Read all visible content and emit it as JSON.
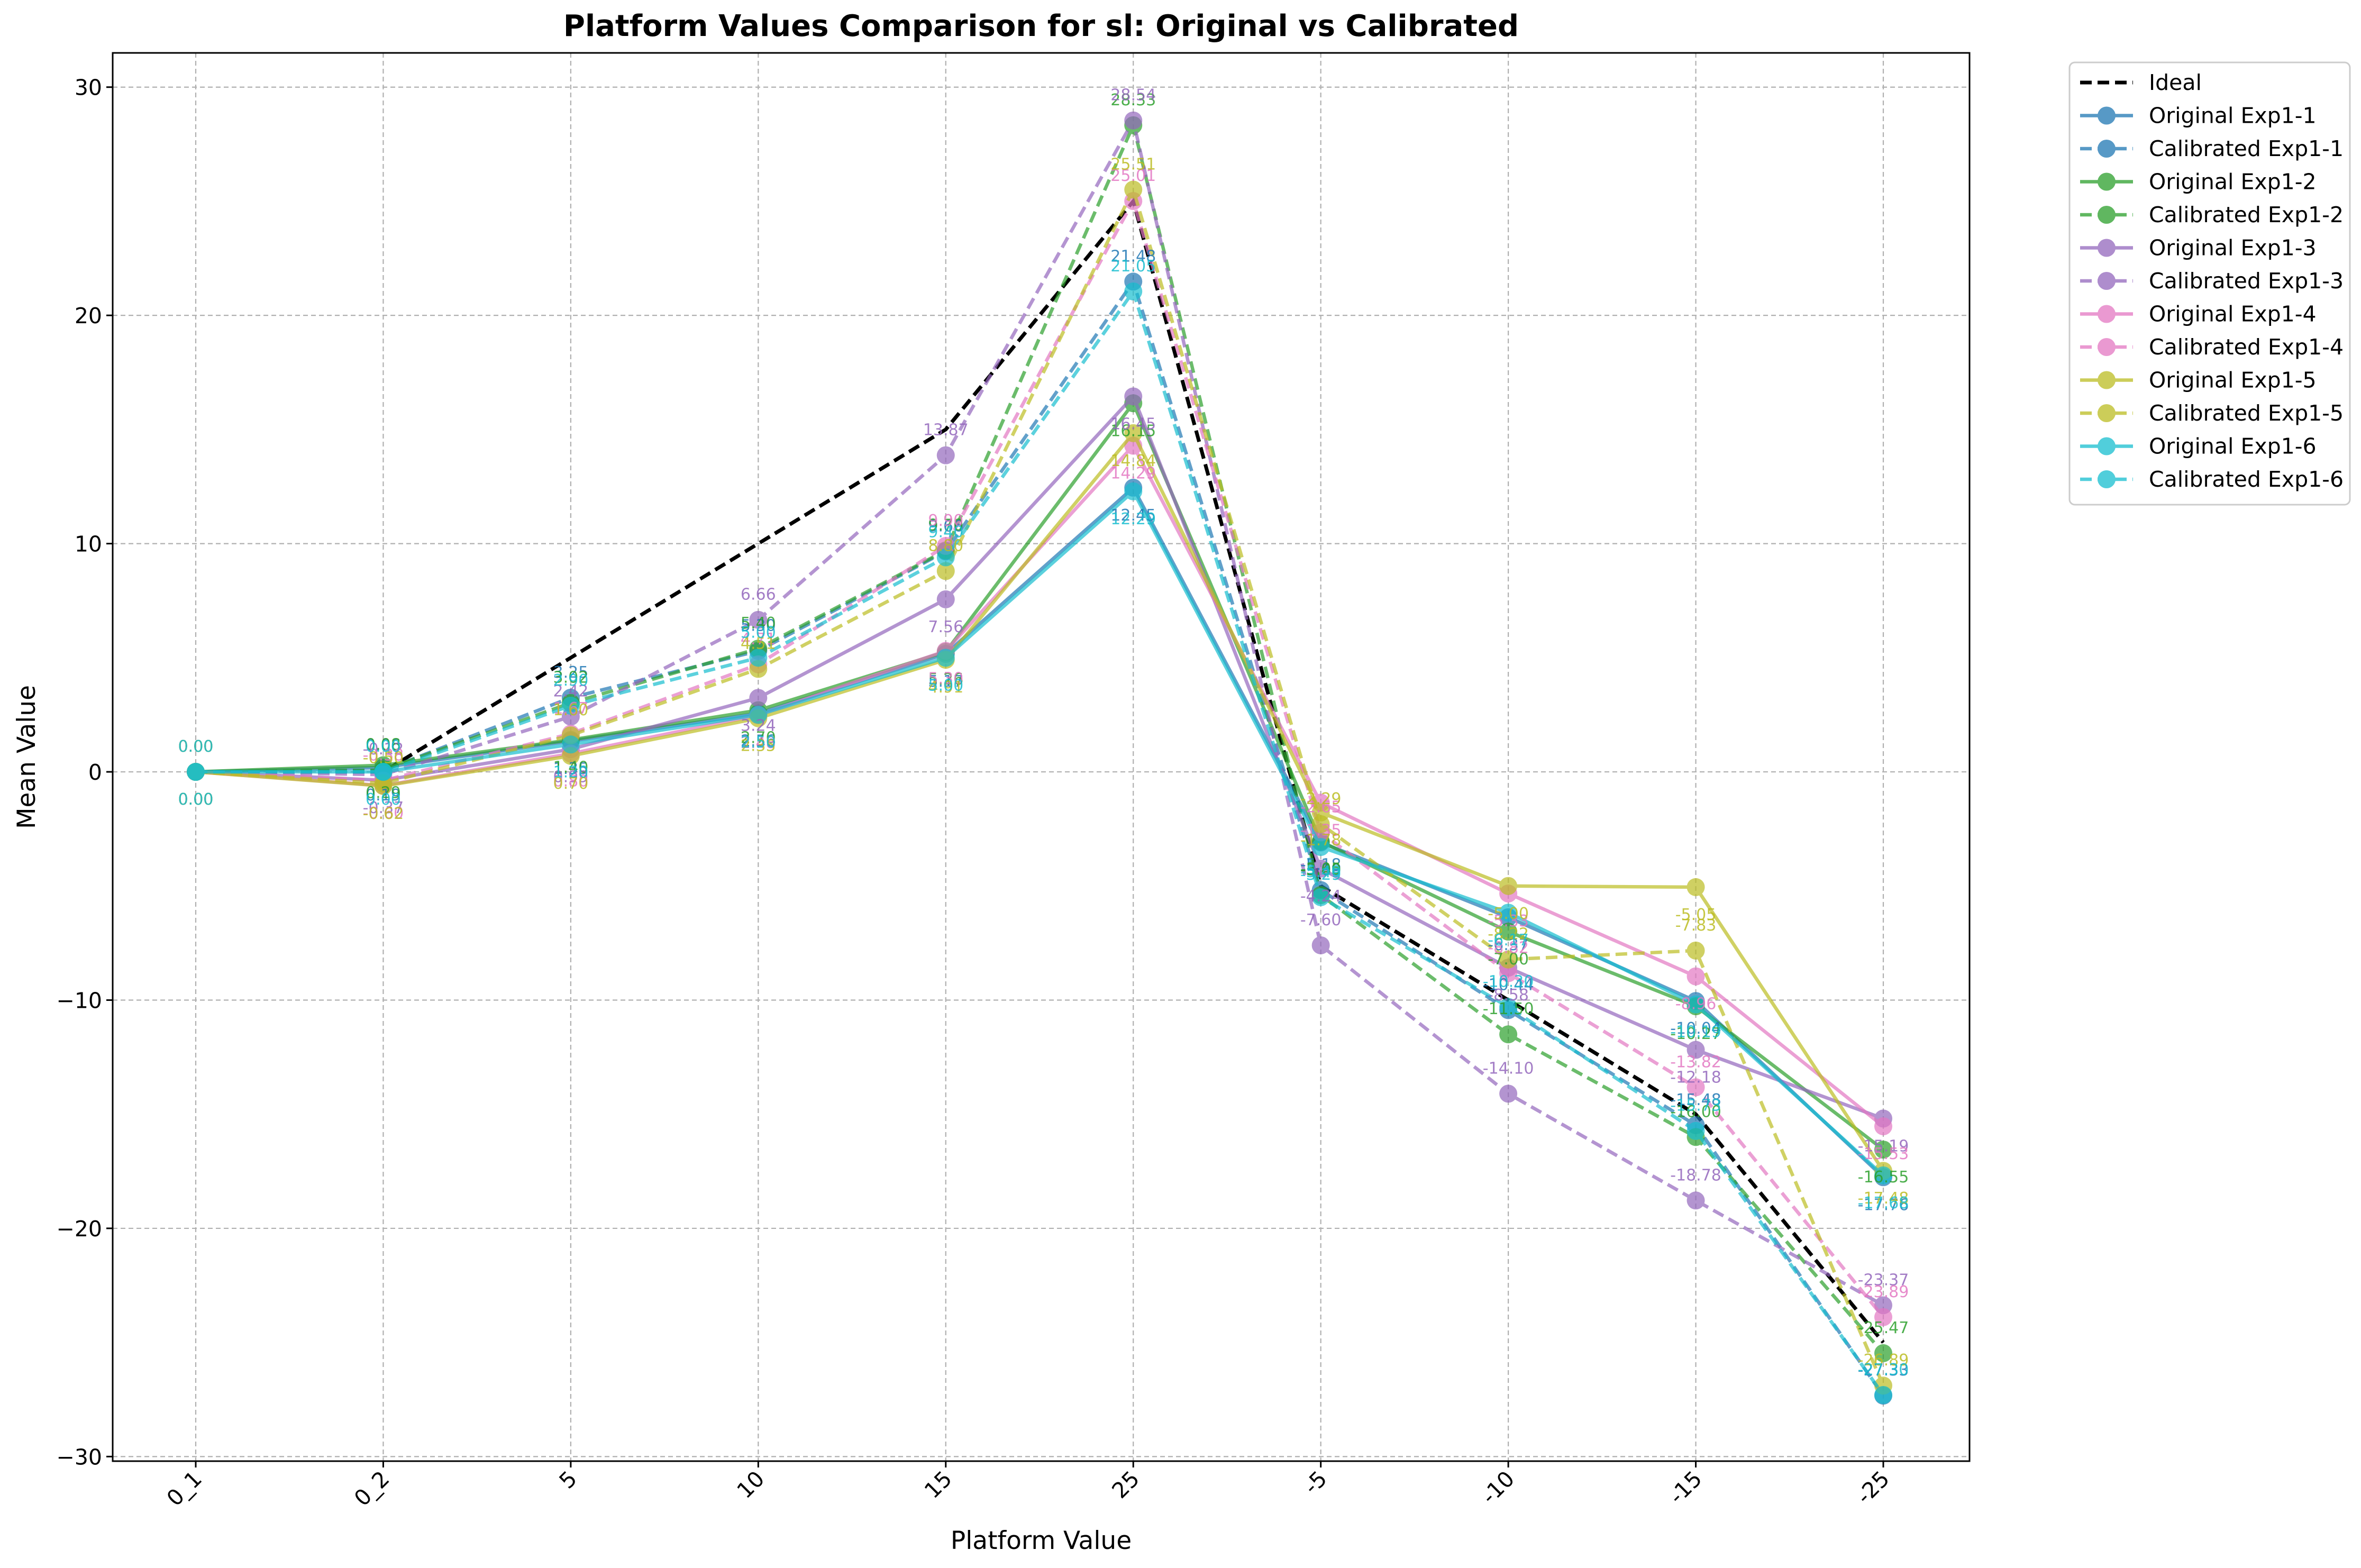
{
  "chart_data": {
    "type": "line",
    "title": "Platform Values Comparison for sl: Original vs Calibrated",
    "xlabel": "Platform Value",
    "ylabel": "Mean Value",
    "categories": [
      "0_1",
      "0_2",
      "5",
      "10",
      "15",
      "25",
      "-5",
      "-10",
      "-15",
      "-25"
    ],
    "ylim": [
      -30.2,
      31.5
    ],
    "yticks": [
      -30,
      -20,
      -10,
      0,
      10,
      20,
      30
    ],
    "grid": true,
    "legend_position": "outside-top-right",
    "series": [
      {
        "name": "Ideal",
        "color": "#000000",
        "style": "dashed",
        "marker": false,
        "values": [
          0,
          0,
          5,
          10,
          15,
          25,
          -5,
          -10,
          -15,
          -25
        ]
      },
      {
        "name": "Original Exp1-1",
        "color": "#1f77b4",
        "style": "solid",
        "marker": true,
        "values": [
          0.0,
          0.19,
          1.35,
          2.56,
          5.17,
          12.45,
          -3.09,
          -6.37,
          -10.04,
          -17.76
        ]
      },
      {
        "name": "Calibrated Exp1-1",
        "color": "#1f77b4",
        "style": "dashed",
        "marker": true,
        "values": [
          0.0,
          0.06,
          3.25,
          5.3,
          9.66,
          21.48,
          -5.18,
          -10.44,
          -15.48,
          -27.33
        ]
      },
      {
        "name": "Original Exp1-2",
        "color": "#2ca02c",
        "style": "solid",
        "marker": true,
        "values": [
          0.0,
          0.29,
          1.4,
          2.7,
          5.26,
          16.15,
          -3.05,
          -7.0,
          -10.27,
          -16.55
        ]
      },
      {
        "name": "Calibrated Exp1-2",
        "color": "#2ca02c",
        "style": "dashed",
        "marker": true,
        "values": [
          0.0,
          0.08,
          3.02,
          5.4,
          9.7,
          28.33,
          -5.4,
          -11.5,
          -16.0,
          -25.47
        ]
      },
      {
        "name": "Original Exp1-3",
        "color": "#9467bd",
        "style": "solid",
        "marker": true,
        "values": [
          0.0,
          -0.37,
          0.99,
          3.24,
          7.56,
          16.45,
          -4.24,
          -8.58,
          -12.18,
          -15.19
        ]
      },
      {
        "name": "Calibrated Exp1-3",
        "color": "#9467bd",
        "style": "dashed",
        "marker": true,
        "values": [
          0.0,
          -0.12,
          2.42,
          6.66,
          13.87,
          28.54,
          -7.6,
          -14.1,
          -18.78,
          -23.37
        ]
      },
      {
        "name": "Original Exp1-4",
        "color": "#e377c2",
        "style": "solid",
        "marker": true,
        "values": [
          0.0,
          -0.6,
          0.8,
          2.48,
          5.3,
          14.29,
          -1.35,
          -5.33,
          -8.96,
          -15.53
        ]
      },
      {
        "name": "Calibrated Exp1-4",
        "color": "#e377c2",
        "style": "dashed",
        "marker": true,
        "values": [
          0.0,
          -0.38,
          1.67,
          4.71,
          9.9,
          25.01,
          -2.65,
          -8.82,
          -13.82,
          -23.89
        ]
      },
      {
        "name": "Original Exp1-5",
        "color": "#bcbd22",
        "style": "solid",
        "marker": true,
        "values": [
          0.0,
          -0.62,
          0.7,
          2.35,
          4.91,
          14.84,
          -1.78,
          -5.0,
          -5.05,
          -17.48
        ]
      },
      {
        "name": "Calibrated Exp1-5",
        "color": "#bcbd22",
        "style": "dashed",
        "marker": true,
        "values": [
          0.0,
          -0.5,
          1.6,
          4.51,
          8.8,
          25.51,
          -2.29,
          -8.22,
          -7.83,
          -26.89
        ]
      },
      {
        "name": "Original Exp1-6",
        "color": "#17becf",
        "style": "solid",
        "marker": true,
        "values": [
          0.0,
          0.0,
          1.2,
          2.5,
          5.0,
          12.29,
          -3.29,
          -6.17,
          -10.19,
          -17.68
        ]
      },
      {
        "name": "Calibrated Exp1-6",
        "color": "#17becf",
        "style": "dashed",
        "marker": true,
        "values": [
          0.0,
          0.0,
          2.9,
          5.0,
          9.4,
          21.05,
          -5.49,
          -10.3,
          -15.73,
          -27.3
        ]
      }
    ]
  }
}
